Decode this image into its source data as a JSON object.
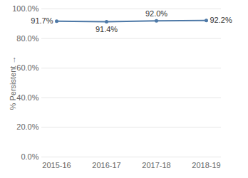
{
  "chart_data": {
    "type": "line",
    "y_label": "% Persistent",
    "categories": [
      "2015-16",
      "2016-17",
      "2017-18",
      "2018-19"
    ],
    "values": [
      91.7,
      91.4,
      92.0,
      92.2
    ],
    "value_labels": [
      "91.7%",
      "91.4%",
      "92.0%",
      "92.2%"
    ],
    "color": "#4e79a7",
    "marker": "circle",
    "ylim": [
      0,
      100
    ],
    "yticks": [
      {
        "value": 0,
        "label": "0.0%"
      },
      {
        "value": 20,
        "label": "20.0%"
      },
      {
        "value": 40,
        "label": "40.0%"
      },
      {
        "value": 60,
        "label": "60.0%"
      },
      {
        "value": 80,
        "label": "80.0%"
      },
      {
        "value": 100,
        "label": "100.0%"
      }
    ],
    "grid": true,
    "data_labels": true
  }
}
